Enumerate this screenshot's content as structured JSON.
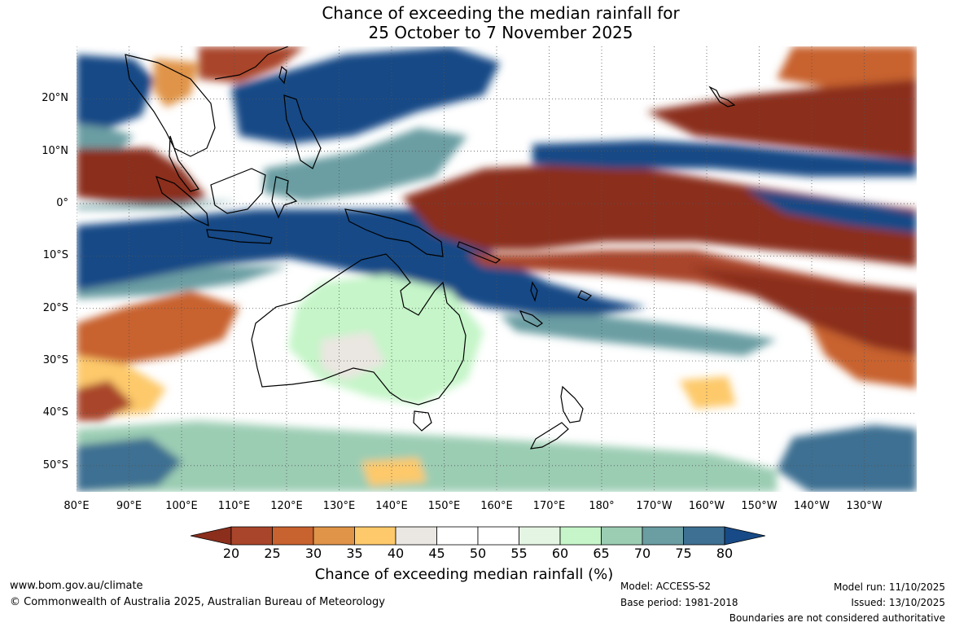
{
  "title": {
    "line1": "Chance of exceeding the median rainfall for",
    "line2": "25 October to 7 November 2025"
  },
  "map": {
    "description_icon": "world-map-icon",
    "lat_labels": [
      "20°N",
      "10°N",
      "0°",
      "10°S",
      "20°S",
      "30°S",
      "40°S",
      "50°S"
    ],
    "lon_labels": [
      "80°E",
      "90°E",
      "100°E",
      "110°E",
      "120°E",
      "130°E",
      "140°E",
      "150°E",
      "160°E",
      "170°E",
      "180°",
      "170°W",
      "160°W",
      "150°W",
      "140°W",
      "130°W"
    ],
    "lat_values": [
      20,
      10,
      0,
      -10,
      -20,
      -30,
      -40,
      -50
    ],
    "lon_values": [
      80,
      90,
      100,
      110,
      120,
      130,
      140,
      150,
      160,
      170,
      180,
      190,
      200,
      210,
      220,
      230
    ],
    "lon_range": [
      80,
      240
    ],
    "lat_range": [
      -55,
      30
    ]
  },
  "colorbar": {
    "title": "Chance of exceeding median rainfall (%)",
    "ticks": [
      "20",
      "25",
      "30",
      "35",
      "40",
      "45",
      "50",
      "55",
      "60",
      "65",
      "70",
      "75",
      "80"
    ],
    "colors": [
      "#8b2e1c",
      "#a9452a",
      "#c8622f",
      "#e09448",
      "#fdc96a",
      "#eae6e1",
      "#ffffff",
      "#ffffff",
      "#e5f5e3",
      "#c5f5c8",
      "#9bcdb3",
      "#6a9ea3",
      "#3d7092",
      "#174a86"
    ]
  },
  "footer": {
    "website": "www.bom.gov.au/climate",
    "copyright": "© Commonwealth of Australia 2025, Australian Bureau of Meteorology",
    "model": "Model: ACCESS-S2",
    "base_period": "Base period: 1981-2018",
    "model_run": "Model run: 11/10/2025",
    "issued": "Issued: 13/10/2025",
    "disclaimer": "Boundaries are not considered authoritative"
  }
}
